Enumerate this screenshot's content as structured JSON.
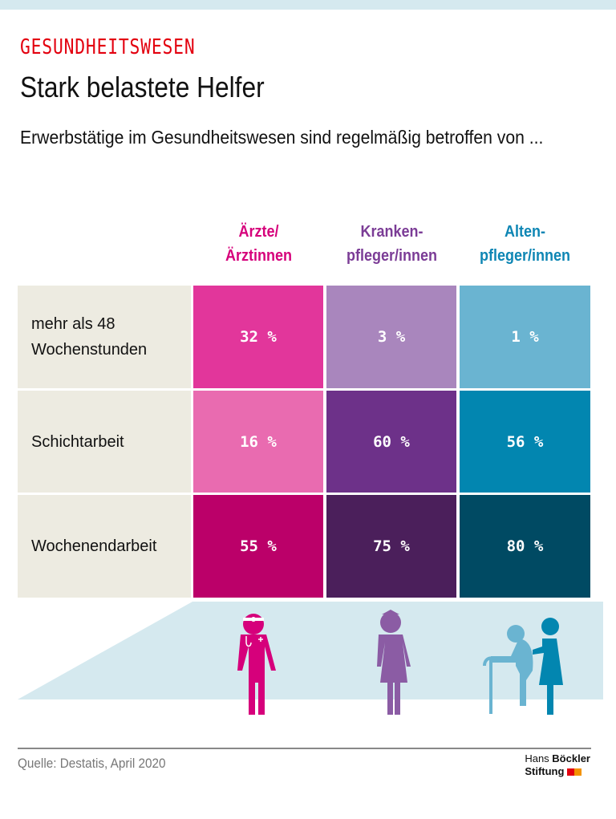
{
  "header": {
    "kicker": "GESUNDHEITSWESEN",
    "title": "Stark belastete Helfer",
    "subtitle": "Erwerbstätige im Gesundheitswesen sind regelmäßig betroffen von ..."
  },
  "chart_data": {
    "type": "table",
    "columns": [
      {
        "label_line1": "Ärzte/",
        "label_line2": "Ärztinnen",
        "color": "#d6007b",
        "icon": "doctor-icon"
      },
      {
        "label_line1": "Kranken-",
        "label_line2": "pfleger/innen",
        "color": "#7b3c96",
        "icon": "nurse-icon"
      },
      {
        "label_line1": "Alten-",
        "label_line2": "pfleger/innen",
        "color": "#0e86b4",
        "icon": "elderly-care-icon"
      }
    ],
    "rows": [
      {
        "label": "mehr als 48 Wochenstunden",
        "values": [
          "32 %",
          "3 %",
          "1 %"
        ],
        "colors": [
          "#e2369b",
          "#a986bd",
          "#6ab4d1"
        ]
      },
      {
        "label": "Schichtarbeit",
        "values": [
          "16 %",
          "60 %",
          "56 %"
        ],
        "colors": [
          "#e96bb0",
          "#6d3189",
          "#0286b0"
        ]
      },
      {
        "label": "Wochenendarbeit",
        "values": [
          "55 %",
          "75 %",
          "80 %"
        ],
        "colors": [
          "#bb0069",
          "#4b1f5b",
          "#004a63"
        ]
      }
    ],
    "unit": "%"
  },
  "footer": {
    "source": "Quelle: Destatis, April 2020",
    "logo_line1a": "Hans ",
    "logo_line1b": "Böckler",
    "logo_line2": "Stiftung"
  }
}
